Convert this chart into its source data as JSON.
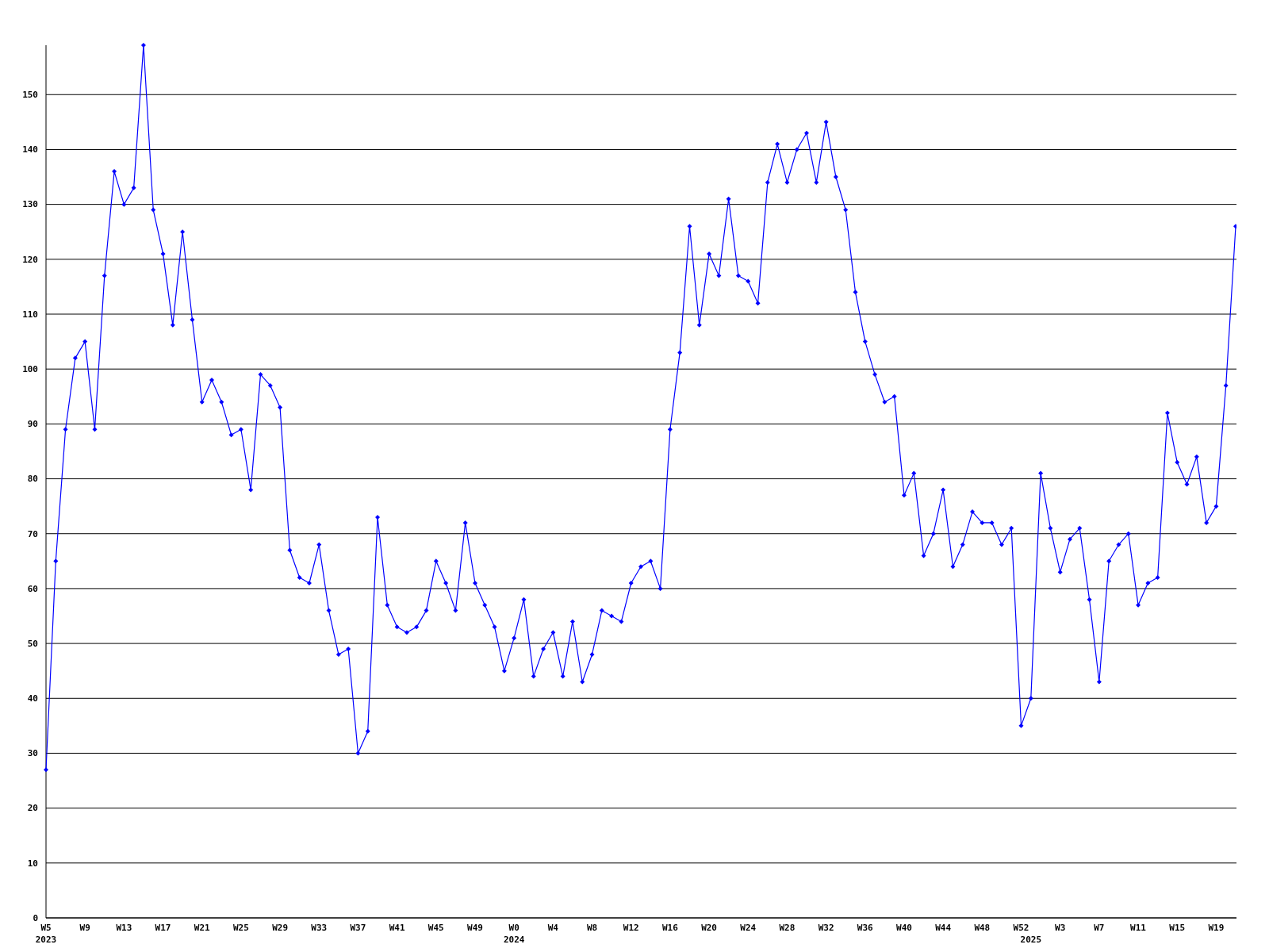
{
  "chart_data": {
    "type": "line",
    "categories": [
      "W5\n2023",
      null,
      null,
      null,
      "W9",
      null,
      null,
      null,
      "W13",
      null,
      null,
      null,
      "W17",
      null,
      null,
      null,
      "W21",
      null,
      null,
      null,
      "W25",
      null,
      null,
      null,
      "W29",
      null,
      null,
      null,
      "W33",
      null,
      null,
      null,
      "W37",
      null,
      null,
      null,
      "W41",
      null,
      null,
      null,
      "W45",
      null,
      null,
      null,
      "W49",
      null,
      null,
      null,
      "W0\n2024",
      null,
      null,
      null,
      "W4",
      null,
      null,
      null,
      "W8",
      null,
      null,
      null,
      "W12",
      null,
      null,
      null,
      "W16",
      null,
      null,
      null,
      "W20",
      null,
      null,
      null,
      "W24",
      null,
      null,
      null,
      "W28",
      null,
      null,
      null,
      "W32",
      null,
      null,
      null,
      "W36",
      null,
      null,
      null,
      "W40",
      null,
      null,
      null,
      "W44",
      null,
      null,
      null,
      "W48",
      null,
      null,
      null,
      "W52",
      "\n2025",
      null,
      null,
      "W3",
      null,
      null,
      null,
      "W7",
      null,
      null,
      null,
      "W11",
      null,
      null,
      null,
      "W15",
      null,
      null,
      null,
      "W19",
      null,
      null
    ],
    "series": [
      {
        "color": "#0000ff",
        "values": [
          27,
          65,
          89,
          102,
          105,
          89,
          117,
          136,
          130,
          133,
          159,
          129,
          121,
          108,
          125,
          109,
          94,
          98,
          94,
          88,
          89,
          78,
          99,
          97,
          93,
          67,
          62,
          61,
          68,
          56,
          48,
          49,
          30,
          34,
          73,
          57,
          53,
          52,
          53,
          56,
          65,
          61,
          56,
          72,
          61,
          57,
          53,
          45,
          51,
          58,
          44,
          49,
          52,
          44,
          54,
          43,
          48,
          56,
          55,
          54,
          61,
          64,
          65,
          60,
          89,
          103,
          126,
          108,
          121,
          117,
          131,
          117,
          116,
          112,
          134,
          141,
          134,
          140,
          143,
          134,
          145,
          135,
          129,
          114,
          105,
          99,
          94,
          95,
          77,
          81,
          66,
          70,
          78,
          64,
          68,
          74,
          72,
          72,
          68,
          71,
          35,
          40,
          81,
          71,
          63,
          69,
          71,
          58,
          43,
          65,
          68,
          70,
          57,
          61,
          62,
          92,
          83,
          79,
          84,
          72,
          75,
          97,
          126
        ]
      }
    ],
    "ylim": [
      0,
      159
    ],
    "yticks": [
      0,
      10,
      20,
      30,
      40,
      50,
      60,
      70,
      80,
      90,
      100,
      110,
      120,
      130,
      140,
      150
    ],
    "grid": "y",
    "marker": "diamond"
  }
}
